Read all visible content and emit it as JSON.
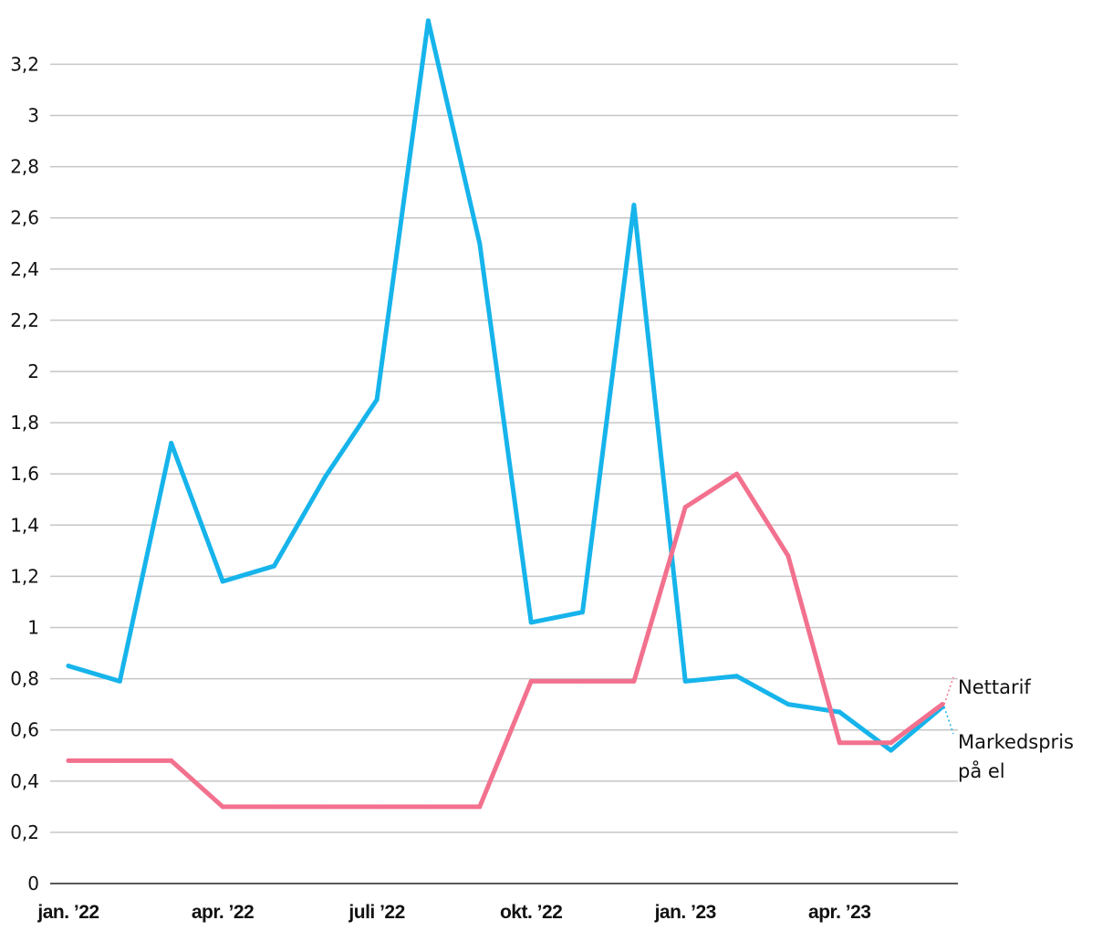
{
  "chart_data": {
    "type": "line",
    "title": "",
    "xlabel": "",
    "ylabel": "",
    "ylim": [
      0,
      3.4
    ],
    "yticks": [
      0,
      0.2,
      0.4,
      0.6,
      0.8,
      1,
      1.2,
      1.4,
      1.6,
      1.8,
      2,
      2.2,
      2.4,
      2.6,
      2.8,
      3,
      3.2
    ],
    "ytick_labels": [
      "0",
      "0,2",
      "0,4",
      "0,6",
      "0,8",
      "1",
      "1,2",
      "1,4",
      "1,6",
      "1,8",
      "2",
      "2,2",
      "2,4",
      "2,6",
      "2,8",
      "3",
      "3,2"
    ],
    "x": [
      "2022-01",
      "2022-02",
      "2022-03",
      "2022-04",
      "2022-05",
      "2022-06",
      "2022-07",
      "2022-08",
      "2022-09",
      "2022-10",
      "2022-11",
      "2022-12",
      "2023-01",
      "2023-02",
      "2023-03",
      "2023-04",
      "2023-05",
      "2023-06"
    ],
    "xtick_labels": [
      {
        "label": "jan. ’22",
        "x": "2022-01"
      },
      {
        "label": "apr. ’22",
        "x": "2022-04"
      },
      {
        "label": "juli ’22",
        "x": "2022-07"
      },
      {
        "label": "okt. ’22",
        "x": "2022-10"
      },
      {
        "label": "jan. ’23",
        "x": "2023-01"
      },
      {
        "label": "apr. ’23",
        "x": "2023-04"
      }
    ],
    "grid": true,
    "series": [
      {
        "name": "Markedspris på el",
        "label_lines": [
          "Markedspris",
          "på el"
        ],
        "color": "#16b4eb",
        "values": [
          0.85,
          0.79,
          1.72,
          1.18,
          1.24,
          1.59,
          1.89,
          3.37,
          2.5,
          1.02,
          1.06,
          2.65,
          0.79,
          0.81,
          0.7,
          0.67,
          0.52,
          0.69
        ]
      },
      {
        "name": "Nettarif",
        "label_lines": [
          "Nettarif"
        ],
        "color": "#f2718e",
        "values": [
          0.48,
          0.48,
          0.48,
          0.3,
          0.3,
          0.3,
          0.3,
          0.3,
          0.3,
          0.79,
          0.79,
          0.79,
          1.47,
          1.6,
          1.28,
          0.55,
          0.55,
          0.7
        ]
      }
    ]
  }
}
